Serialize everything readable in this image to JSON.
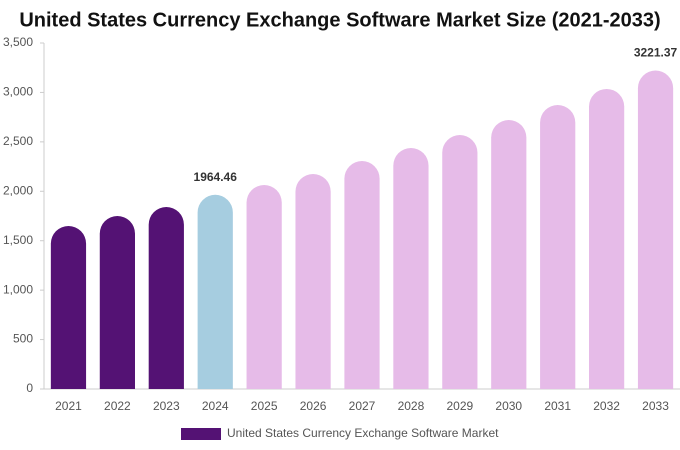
{
  "chart_data": {
    "type": "bar",
    "title": "United States Currency Exchange Software Market Size (2021-2033)",
    "categories": [
      "2021",
      "2022",
      "2023",
      "2024",
      "2025",
      "2026",
      "2027",
      "2028",
      "2029",
      "2030",
      "2031",
      "2032",
      "2033"
    ],
    "series": [
      {
        "name": "United States Currency Exchange Software Market",
        "color": "#541274",
        "values": [
          1649,
          1750,
          1841,
          1964.46,
          2064,
          2175,
          2306,
          2438,
          2569,
          2721,
          2873,
          3035,
          3221.37
        ],
        "colors": [
          "#541274",
          "#541274",
          "#541274",
          "#a6cde0",
          "#e6bbe8",
          "#e6bbe8",
          "#e6bbe8",
          "#e6bbe8",
          "#e6bbe8",
          "#e6bbe8",
          "#e6bbe8",
          "#e6bbe8",
          "#e6bbe8"
        ],
        "value_labels": [
          null,
          null,
          null,
          "1964.46",
          null,
          null,
          null,
          null,
          null,
          null,
          null,
          null,
          "3221.37"
        ]
      }
    ],
    "ylim": [
      0,
      3500
    ],
    "yticks": [
      0,
      500,
      {
        "value": 1000,
        "label": "1,000"
      },
      {
        "value": 1500,
        "label": "1,500"
      },
      {
        "value": 2000,
        "label": "2,000"
      },
      {
        "value": 2500,
        "label": "2,500"
      },
      {
        "value": 3000,
        "label": "3,000"
      },
      {
        "value": 3500,
        "label": "3,500"
      }
    ],
    "legend": "bottom"
  }
}
